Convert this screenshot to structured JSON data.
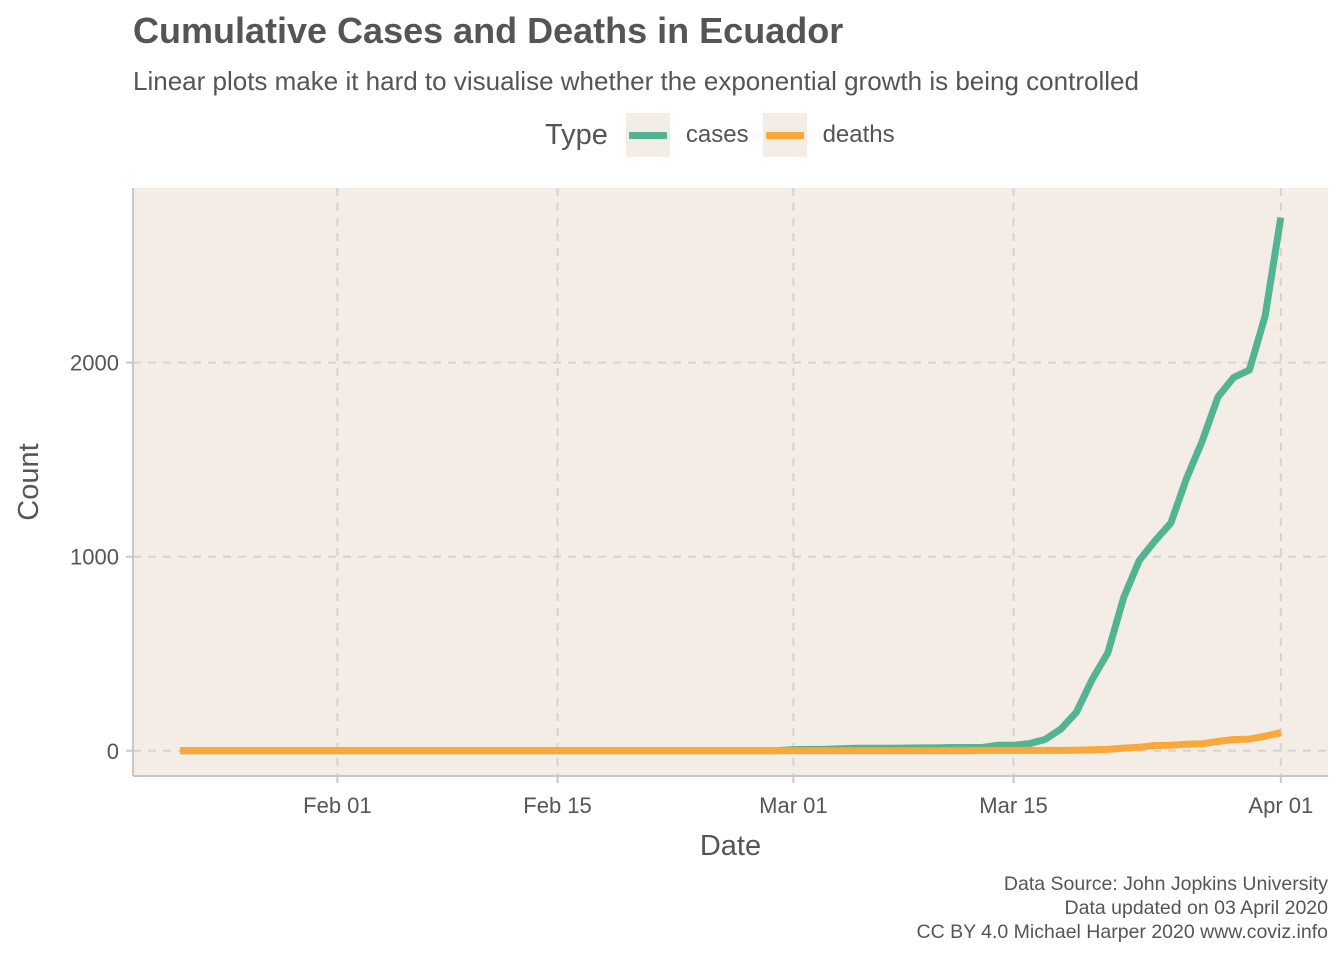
{
  "title": "Cumulative Cases and Deaths in Ecuador",
  "subtitle": "Linear plots make it hard to visualise whether the exponential growth is being controlled",
  "legend": {
    "title": "Type",
    "items": [
      {
        "label": "cases",
        "color": "#52b491"
      },
      {
        "label": "deaths",
        "color": "#f9a83c"
      }
    ]
  },
  "caption": {
    "line1": "Data Source: John Jopkins University",
    "line2": "Data updated on 03 April 2020",
    "line3": "CC BY 4.0 Michael Harper 2020 www.coviz.info"
  },
  "chart_data": {
    "type": "line",
    "xlabel": "Date",
    "ylabel": "Count",
    "x_ticks": [
      {
        "date": "2020-02-01",
        "label": "Feb 01"
      },
      {
        "date": "2020-02-15",
        "label": "Feb 15"
      },
      {
        "date": "2020-03-01",
        "label": "Mar 01"
      },
      {
        "date": "2020-03-15",
        "label": "Mar 15"
      },
      {
        "date": "2020-04-01",
        "label": "Apr 01"
      }
    ],
    "y_ticks": [
      0,
      1000,
      2000
    ],
    "xlim": [
      "2020-01-19",
      "2020-04-04"
    ],
    "ylim": [
      -130,
      2900
    ],
    "grid": true,
    "legend_position": "top",
    "background": "#f3ede6",
    "gridline_color": "#d3d3d3",
    "series": [
      {
        "name": "cases",
        "color": "#52b491",
        "points": [
          [
            "2020-01-22",
            0
          ],
          [
            "2020-02-28",
            0
          ],
          [
            "2020-02-29",
            1
          ],
          [
            "2020-03-01",
            6
          ],
          [
            "2020-03-02",
            7
          ],
          [
            "2020-03-03",
            7
          ],
          [
            "2020-03-04",
            10
          ],
          [
            "2020-03-05",
            13
          ],
          [
            "2020-03-06",
            13
          ],
          [
            "2020-03-07",
            13
          ],
          [
            "2020-03-08",
            14
          ],
          [
            "2020-03-09",
            15
          ],
          [
            "2020-03-10",
            15
          ],
          [
            "2020-03-11",
            17
          ],
          [
            "2020-03-12",
            17
          ],
          [
            "2020-03-13",
            17
          ],
          [
            "2020-03-14",
            28
          ],
          [
            "2020-03-15",
            28
          ],
          [
            "2020-03-16",
            37
          ],
          [
            "2020-03-17",
            58
          ],
          [
            "2020-03-18",
            111
          ],
          [
            "2020-03-19",
            199
          ],
          [
            "2020-03-20",
            367
          ],
          [
            "2020-03-21",
            506
          ],
          [
            "2020-03-22",
            789
          ],
          [
            "2020-03-23",
            981
          ],
          [
            "2020-03-24",
            1082
          ],
          [
            "2020-03-25",
            1173
          ],
          [
            "2020-03-26",
            1403
          ],
          [
            "2020-03-27",
            1595
          ],
          [
            "2020-03-28",
            1823
          ],
          [
            "2020-03-29",
            1924
          ],
          [
            "2020-03-30",
            1962
          ],
          [
            "2020-03-31",
            2240
          ],
          [
            "2020-04-01",
            2748
          ]
        ]
      },
      {
        "name": "deaths",
        "color": "#f9a83c",
        "points": [
          [
            "2020-01-22",
            0
          ],
          [
            "2020-03-12",
            0
          ],
          [
            "2020-03-13",
            2
          ],
          [
            "2020-03-14",
            2
          ],
          [
            "2020-03-15",
            2
          ],
          [
            "2020-03-16",
            2
          ],
          [
            "2020-03-17",
            2
          ],
          [
            "2020-03-18",
            2
          ],
          [
            "2020-03-19",
            3
          ],
          [
            "2020-03-20",
            5
          ],
          [
            "2020-03-21",
            7
          ],
          [
            "2020-03-22",
            14
          ],
          [
            "2020-03-23",
            18
          ],
          [
            "2020-03-24",
            27
          ],
          [
            "2020-03-25",
            28
          ],
          [
            "2020-03-26",
            34
          ],
          [
            "2020-03-27",
            36
          ],
          [
            "2020-03-28",
            48
          ],
          [
            "2020-03-29",
            58
          ],
          [
            "2020-03-30",
            60
          ],
          [
            "2020-03-31",
            75
          ],
          [
            "2020-04-01",
            93
          ]
        ]
      }
    ]
  }
}
